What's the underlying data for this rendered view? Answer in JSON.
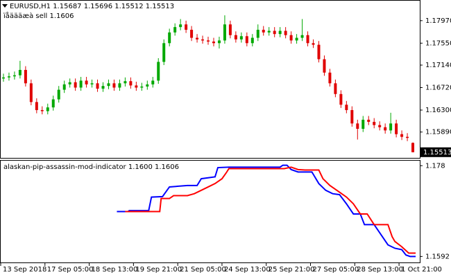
{
  "chart_data": [
    {
      "type": "candlestick",
      "title": "EURUSD,H1 1.15687 1.15696 1.15512 1.15513",
      "subtitle": "ïåäääæà sell 1.1606",
      "x": [
        2,
        6,
        10,
        14,
        18,
        22,
        26,
        30,
        34,
        38,
        42,
        46,
        50,
        54,
        58,
        62,
        66,
        70,
        74,
        78,
        82,
        86,
        90,
        94,
        98,
        102,
        106,
        110,
        114,
        118,
        122,
        126,
        130,
        134,
        138,
        142,
        146,
        150,
        154,
        158,
        162,
        166,
        170,
        174,
        178,
        182,
        186,
        190,
        194,
        198,
        202,
        206,
        210,
        214,
        218,
        222,
        226,
        230,
        234,
        238,
        242,
        246,
        250,
        254,
        258,
        262,
        266,
        270,
        274,
        278,
        282,
        286,
        290,
        294,
        298
      ],
      "open": [
        1.1689,
        1.1691,
        1.1693,
        1.1695,
        1.1705,
        1.168,
        1.1645,
        1.163,
        1.1628,
        1.1635,
        1.165,
        1.1668,
        1.1678,
        1.1682,
        1.1672,
        1.1685,
        1.1678,
        1.168,
        1.167,
        1.1675,
        1.168,
        1.1672,
        1.168,
        1.1684,
        1.1676,
        1.1672,
        1.1674,
        1.1678,
        1.1685,
        1.172,
        1.1755,
        1.1775,
        1.1785,
        1.179,
        1.178,
        1.1765,
        1.1762,
        1.176,
        1.1758,
        1.1755,
        1.176,
        1.179,
        1.177,
        1.1762,
        1.1768,
        1.1755,
        1.1765,
        1.178,
        1.1775,
        1.1778,
        1.1772,
        1.1778,
        1.177,
        1.176,
        1.1765,
        1.177,
        1.1755,
        1.1752,
        1.1725,
        1.17,
        1.168,
        1.166,
        1.164,
        1.163,
        1.1605,
        1.1595,
        1.1612,
        1.1608,
        1.1602,
        1.1598,
        1.1592,
        1.1605,
        1.1585,
        1.158,
        1.15687
      ],
      "high": [
        1.1698,
        1.17,
        1.1702,
        1.1722,
        1.1712,
        1.1687,
        1.1652,
        1.1637,
        1.1642,
        1.1657,
        1.1675,
        1.1685,
        1.1689,
        1.1689,
        1.1692,
        1.1692,
        1.1687,
        1.1687,
        1.1682,
        1.1687,
        1.1687,
        1.1687,
        1.1691,
        1.1691,
        1.1683,
        1.1681,
        1.1685,
        1.1692,
        1.1727,
        1.1762,
        1.1782,
        1.1792,
        1.18,
        1.1797,
        1.1787,
        1.1772,
        1.1769,
        1.1767,
        1.1765,
        1.1767,
        1.1807,
        1.1797,
        1.1777,
        1.1775,
        1.1775,
        1.1772,
        1.179,
        1.1787,
        1.1785,
        1.1785,
        1.1785,
        1.1785,
        1.1777,
        1.1772,
        1.18,
        1.1777,
        1.1762,
        1.1759,
        1.1732,
        1.1707,
        1.1687,
        1.1667,
        1.1647,
        1.1637,
        1.1612,
        1.1619,
        1.1619,
        1.1615,
        1.1609,
        1.1605,
        1.1625,
        1.1612,
        1.1592,
        1.1587,
        1.15696
      ],
      "low": [
        1.1683,
        1.1685,
        1.1687,
        1.1689,
        1.1674,
        1.1639,
        1.1624,
        1.1622,
        1.1622,
        1.1629,
        1.1644,
        1.1662,
        1.1672,
        1.1666,
        1.1666,
        1.1672,
        1.1672,
        1.1664,
        1.1664,
        1.1669,
        1.1666,
        1.1666,
        1.1674,
        1.167,
        1.1666,
        1.1666,
        1.1668,
        1.1672,
        1.1679,
        1.1714,
        1.1749,
        1.1769,
        1.1779,
        1.1774,
        1.1759,
        1.1756,
        1.1754,
        1.1752,
        1.1749,
        1.1745,
        1.1754,
        1.1764,
        1.1756,
        1.1756,
        1.1749,
        1.1749,
        1.1759,
        1.1769,
        1.1769,
        1.1766,
        1.1766,
        1.1764,
        1.1754,
        1.1754,
        1.1759,
        1.1749,
        1.1746,
        1.1719,
        1.1694,
        1.1674,
        1.1654,
        1.1634,
        1.1624,
        1.1599,
        1.1575,
        1.1589,
        1.1602,
        1.1596,
        1.1592,
        1.1586,
        1.1586,
        1.1579,
        1.1574,
        1.1572,
        1.15512
      ],
      "close": [
        1.1691,
        1.1693,
        1.1695,
        1.1705,
        1.168,
        1.1645,
        1.163,
        1.1628,
        1.1635,
        1.165,
        1.1668,
        1.1678,
        1.1682,
        1.1672,
        1.1685,
        1.1678,
        1.168,
        1.167,
        1.1675,
        1.168,
        1.1672,
        1.168,
        1.1684,
        1.1676,
        1.1672,
        1.1674,
        1.1678,
        1.1685,
        1.172,
        1.1755,
        1.1775,
        1.1785,
        1.179,
        1.178,
        1.1765,
        1.1762,
        1.176,
        1.1758,
        1.1755,
        1.176,
        1.179,
        1.177,
        1.1762,
        1.1768,
        1.1755,
        1.1765,
        1.178,
        1.1775,
        1.1778,
        1.1772,
        1.1778,
        1.177,
        1.176,
        1.1765,
        1.177,
        1.1755,
        1.1752,
        1.1725,
        1.17,
        1.168,
        1.166,
        1.164,
        1.163,
        1.1605,
        1.1595,
        1.1612,
        1.1608,
        1.1602,
        1.1598,
        1.1592,
        1.1605,
        1.1585,
        1.158,
        1.1578,
        1.15513
      ],
      "up_color": "#00a800",
      "down_color": "#e00000",
      "xlim": [
        0,
        303
      ],
      "xticks": [
        {
          "value": 0,
          "label": "13 Sep 2018"
        },
        {
          "value": 32,
          "label": "17 Sep 05:00"
        },
        {
          "value": 64,
          "label": "18 Sep 13:00"
        },
        {
          "value": 96,
          "label": "19 Sep 21:00"
        },
        {
          "value": 128,
          "label": "21 Sep 05:00"
        },
        {
          "value": 160,
          "label": "24 Sep 13:00"
        },
        {
          "value": 192,
          "label": "25 Sep 21:00"
        },
        {
          "value": 224,
          "label": "27 Sep 05:00"
        },
        {
          "value": 256,
          "label": "28 Sep 13:00"
        },
        {
          "value": 288,
          "label": "1 Oct 21:00"
        }
      ],
      "ylim": [
        1.1542,
        1.1833
      ],
      "yticks": [
        {
          "value": 1.1797,
          "label": "1.17970"
        },
        {
          "value": 1.1755,
          "label": "1.17550"
        },
        {
          "value": 1.1714,
          "label": "1.17140"
        },
        {
          "value": 1.1672,
          "label": "1.16720"
        },
        {
          "value": 1.163,
          "label": "1.16300"
        },
        {
          "value": 1.1589,
          "label": "1.15890"
        }
      ],
      "current_price": 1.15513
    },
    {
      "type": "line",
      "title": "alaskan-pip-assassin-mod-indicator 1.1600 1.1606",
      "xlim": [
        0,
        303
      ],
      "ylim": [
        1.1581,
        1.1789
      ],
      "yticks": [
        1.178,
        1.1592
      ],
      "series": [
        {
          "color": "#0000ff",
          "x": [
            84,
            92,
            93,
            107,
            109,
            117,
            122,
            135,
            142,
            145,
            155,
            157,
            165,
            202,
            204,
            207,
            210,
            215,
            225,
            230,
            235,
            240,
            245,
            250,
            255,
            260,
            263,
            270,
            275,
            280,
            285,
            290,
            293,
            296,
            300
          ],
          "values": [
            1.1685,
            1.1685,
            1.1687,
            1.1687,
            1.1715,
            1.1716,
            1.1736,
            1.1739,
            1.1739,
            1.1753,
            1.1757,
            1.1776,
            1.1777,
            1.1777,
            1.1781,
            1.1781,
            1.1772,
            1.1767,
            1.1767,
            1.1743,
            1.1729,
            1.1722,
            1.172,
            1.1701,
            1.168,
            1.168,
            1.1658,
            1.1658,
            1.1637,
            1.1616,
            1.1609,
            1.1606,
            1.1595,
            1.1592,
            1.1592
          ]
        },
        {
          "color": "#ff0000",
          "x": [
            90,
            115,
            116,
            122,
            125,
            135,
            140,
            145,
            150,
            155,
            160,
            163,
            165,
            205,
            210,
            215,
            220,
            230,
            233,
            238,
            245,
            250,
            255,
            260,
            265,
            270,
            280,
            283,
            285,
            290,
            295,
            300
          ],
          "values": [
            1.1685,
            1.1685,
            1.1712,
            1.1712,
            1.1718,
            1.1718,
            1.1722,
            1.1729,
            1.1736,
            1.1743,
            1.1753,
            1.1765,
            1.1774,
            1.1774,
            1.1777,
            1.1772,
            1.1771,
            1.1771,
            1.1753,
            1.1739,
            1.1725,
            1.1715,
            1.1701,
            1.168,
            1.168,
            1.1658,
            1.1658,
            1.1633,
            1.1623,
            1.1612,
            1.1599,
            1.1599
          ]
        }
      ]
    }
  ]
}
